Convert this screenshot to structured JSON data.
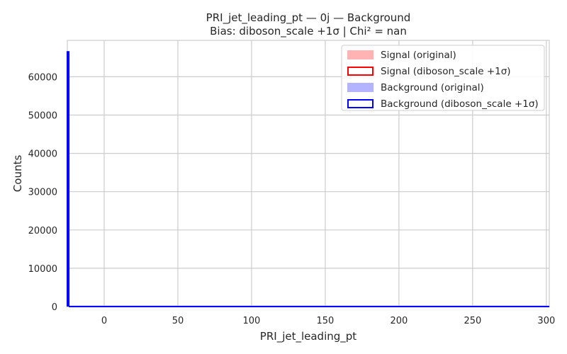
{
  "chart_data": {
    "type": "bar",
    "title": "PRI_jet_leading_pt — 0j — Background",
    "subtitle": "Bias: diboson_scale +1σ | Chi² = nan",
    "xlabel": "PRI_jet_leading_pt",
    "ylabel": "Counts",
    "xlim": [
      -25,
      302
    ],
    "ylim": [
      0,
      69500
    ],
    "xticks": [
      0,
      50,
      100,
      150,
      200,
      250,
      300
    ],
    "yticks": [
      0,
      10000,
      20000,
      30000,
      40000,
      50000,
      60000
    ],
    "grid": true,
    "legend_position": "top-right",
    "series": [
      {
        "name": "Signal (original)",
        "style": "filled",
        "color": "#ffb3b3",
        "bins": []
      },
      {
        "name": "Signal (diboson_scale +1σ)",
        "style": "step",
        "color": "#ff0000",
        "bins": []
      },
      {
        "name": "Background (original)",
        "style": "filled",
        "color": "#b3b3ff",
        "bins": [
          {
            "x0": -25,
            "x1": -24,
            "value": 66500
          },
          {
            "x0": -24,
            "x1": 302,
            "value": 0
          }
        ]
      },
      {
        "name": "Background (diboson_scale +1σ)",
        "style": "step",
        "color": "#0000ff",
        "bins": [
          {
            "x0": -25,
            "x1": -24,
            "value": 66500
          },
          {
            "x0": -24,
            "x1": 302,
            "value": 0
          }
        ]
      }
    ]
  }
}
